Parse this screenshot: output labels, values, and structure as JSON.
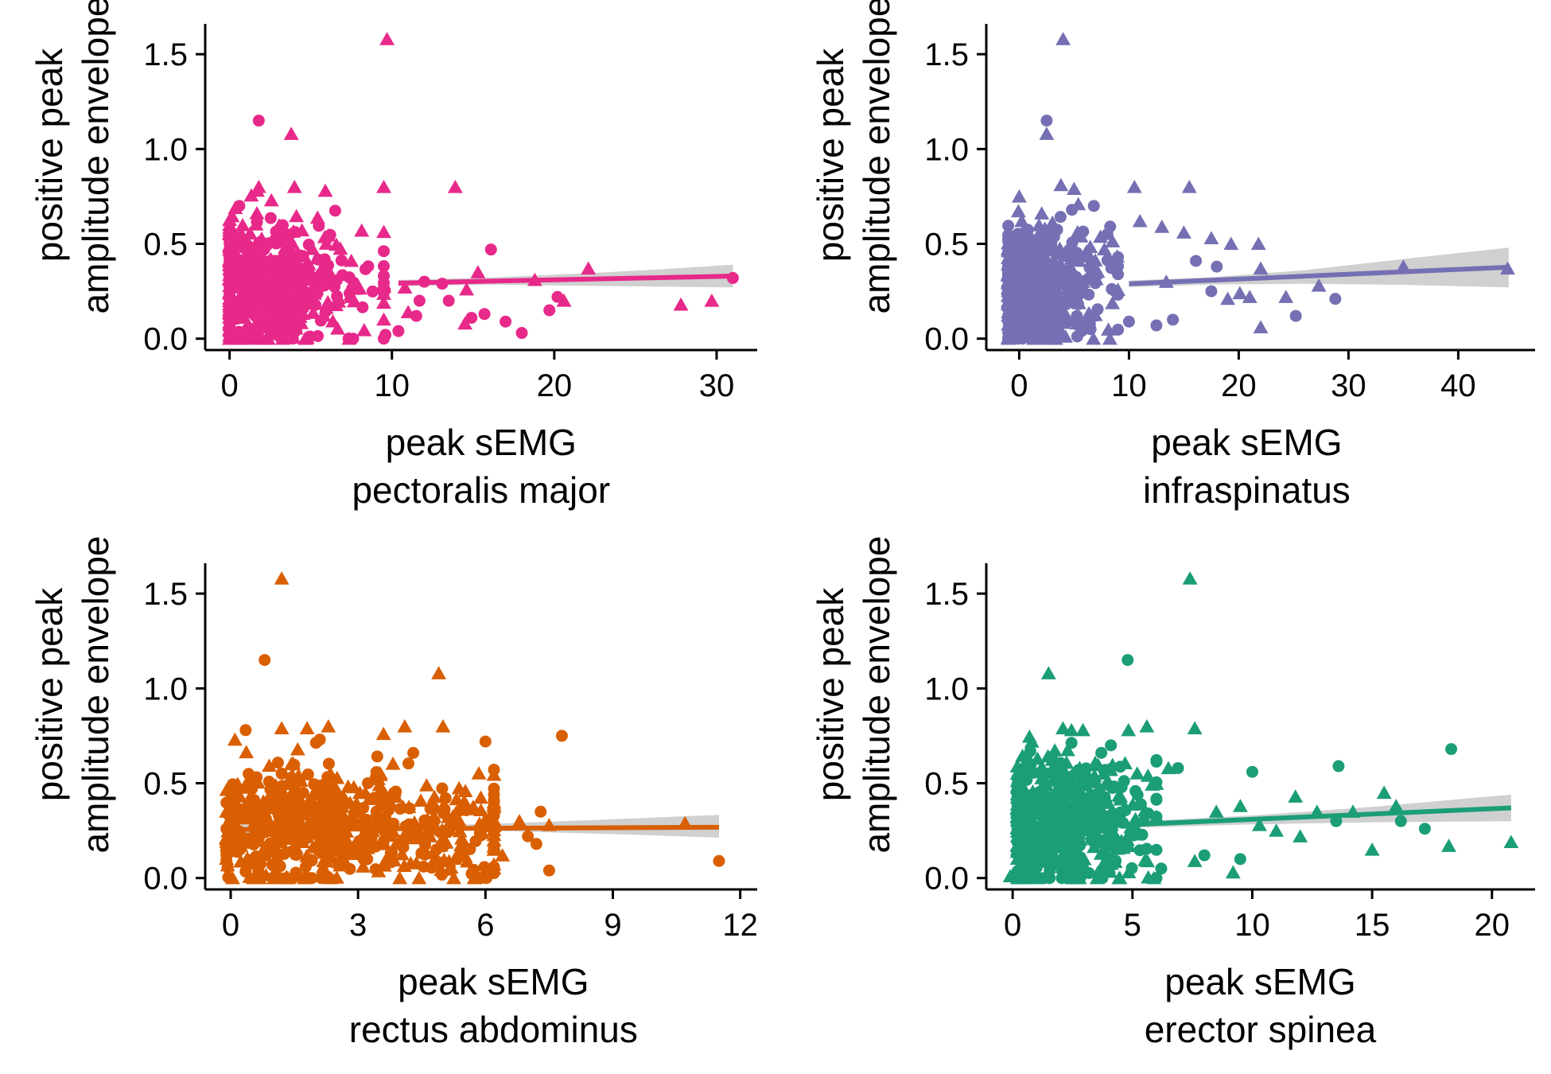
{
  "figure": {
    "panels": [
      {
        "id": "pectoralis",
        "color": "#E7298A",
        "xlabel": [
          "peak sEMG",
          "pectoralis major"
        ],
        "ylabel": [
          "positive peak",
          "amplitude envelope"
        ],
        "x_ticks": [
          0,
          10,
          20,
          30
        ],
        "y_ticks": [
          "0.0",
          "0.5",
          "1.0",
          "1.5"
        ]
      },
      {
        "id": "infraspinatus",
        "color": "#7570B3",
        "xlabel": [
          "peak sEMG",
          "infraspinatus"
        ],
        "ylabel": [
          "positive peak",
          "amplitude envelope"
        ],
        "x_ticks": [
          0,
          10,
          20,
          30,
          40
        ],
        "y_ticks": [
          "0.0",
          "0.5",
          "1.0",
          "1.5"
        ]
      },
      {
        "id": "rectus",
        "color": "#D95F02",
        "xlabel": [
          "peak sEMG",
          "rectus abdominus"
        ],
        "ylabel": [
          "positive peak",
          "amplitude envelope"
        ],
        "x_ticks": [
          0,
          3,
          6,
          9,
          12
        ],
        "y_ticks": [
          "0.0",
          "0.5",
          "1.0",
          "1.5"
        ]
      },
      {
        "id": "erector",
        "color": "#1B9E77",
        "xlabel": [
          "peak sEMG",
          "erector spinea"
        ],
        "ylabel": [
          "positive peak",
          "amplitude envelope"
        ],
        "x_ticks": [
          0,
          5,
          10,
          15,
          20
        ],
        "y_ticks": [
          "0.0",
          "0.5",
          "1.0",
          "1.5"
        ]
      }
    ]
  },
  "chart_data": [
    {
      "type": "scatter",
      "title": "",
      "xlabel": "peak sEMG pectoralis major",
      "ylabel": "positive peak amplitude envelope",
      "xlim": [
        -1.5,
        32.5
      ],
      "ylim": [
        -0.06,
        1.66
      ],
      "x_ticks": [
        0,
        10,
        20,
        30
      ],
      "y_ticks": [
        0,
        0.5,
        1.0,
        1.5
      ],
      "grid": false,
      "legend": "none",
      "color": "#E7298A",
      "cluster": {
        "x_range": [
          0,
          9.5
        ],
        "x_mode": 2.5,
        "y_center": 0.28,
        "y_spread": 0.17,
        "n": 560
      },
      "points": [
        {
          "x": 9.7,
          "y": 1.58,
          "shape": "triangle"
        },
        {
          "x": 1.8,
          "y": 1.15,
          "shape": "circle"
        },
        {
          "x": 3.8,
          "y": 1.08,
          "shape": "triangle"
        },
        {
          "x": 9.5,
          "y": 0.8,
          "shape": "triangle"
        },
        {
          "x": 13.9,
          "y": 0.8,
          "shape": "triangle"
        },
        {
          "x": 1.8,
          "y": 0.8,
          "shape": "triangle"
        },
        {
          "x": 4.0,
          "y": 0.8,
          "shape": "triangle"
        },
        {
          "x": 5.9,
          "y": 0.78,
          "shape": "triangle"
        },
        {
          "x": 0.6,
          "y": 0.7,
          "shape": "circle"
        },
        {
          "x": 16.1,
          "y": 0.47,
          "shape": "circle"
        },
        {
          "x": 15.3,
          "y": 0.35,
          "shape": "triangle"
        },
        {
          "x": 22.1,
          "y": 0.37,
          "shape": "triangle"
        },
        {
          "x": 18.8,
          "y": 0.31,
          "shape": "triangle"
        },
        {
          "x": 12.0,
          "y": 0.3,
          "shape": "circle"
        },
        {
          "x": 13.1,
          "y": 0.29,
          "shape": "circle"
        },
        {
          "x": 14.6,
          "y": 0.26,
          "shape": "triangle"
        },
        {
          "x": 10.8,
          "y": 0.27,
          "shape": "triangle"
        },
        {
          "x": 11.7,
          "y": 0.2,
          "shape": "circle"
        },
        {
          "x": 20.6,
          "y": 0.2,
          "shape": "triangle"
        },
        {
          "x": 20.2,
          "y": 0.22,
          "shape": "circle"
        },
        {
          "x": 27.8,
          "y": 0.18,
          "shape": "triangle"
        },
        {
          "x": 29.7,
          "y": 0.2,
          "shape": "triangle"
        },
        {
          "x": 19.7,
          "y": 0.15,
          "shape": "circle"
        },
        {
          "x": 14.9,
          "y": 0.11,
          "shape": "circle"
        },
        {
          "x": 14.5,
          "y": 0.08,
          "shape": "triangle"
        },
        {
          "x": 17.0,
          "y": 0.09,
          "shape": "circle"
        },
        {
          "x": 15.7,
          "y": 0.13,
          "shape": "circle"
        },
        {
          "x": 13.5,
          "y": 0.2,
          "shape": "circle"
        },
        {
          "x": 11.0,
          "y": 0.14,
          "shape": "triangle"
        },
        {
          "x": 10.4,
          "y": 0.04,
          "shape": "circle"
        },
        {
          "x": 11.5,
          "y": 0.12,
          "shape": "circle"
        },
        {
          "x": 9.6,
          "y": 0.02,
          "shape": "circle"
        },
        {
          "x": 18.0,
          "y": 0.03,
          "shape": "circle"
        },
        {
          "x": 31.0,
          "y": 0.32,
          "shape": "circle"
        }
      ],
      "regression": {
        "x0": 10.4,
        "y0": 0.293,
        "x1": 31.0,
        "y1": 0.33
      },
      "confidence_band": {
        "x": [
          10.4,
          16,
          22,
          27,
          31
        ],
        "lower": [
          0.277,
          0.285,
          0.279,
          0.274,
          0.27
        ],
        "upper": [
          0.309,
          0.322,
          0.345,
          0.368,
          0.39
        ]
      }
    },
    {
      "type": "scatter",
      "title": "",
      "xlabel": "peak sEMG infraspinatus",
      "ylabel": "positive peak amplitude envelope",
      "xlim": [
        -3.0,
        47.0
      ],
      "ylim": [
        -0.06,
        1.66
      ],
      "x_ticks": [
        0,
        10,
        20,
        30,
        40
      ],
      "y_ticks": [
        0,
        0.5,
        1.0,
        1.5
      ],
      "grid": false,
      "legend": "none",
      "color": "#7570B3",
      "cluster": {
        "x_range": [
          -1,
          9
        ],
        "x_mode": 2.0,
        "y_center": 0.28,
        "y_spread": 0.16,
        "n": 560
      },
      "points": [
        {
          "x": 4.0,
          "y": 1.58,
          "shape": "triangle"
        },
        {
          "x": 2.5,
          "y": 1.15,
          "shape": "circle"
        },
        {
          "x": 2.5,
          "y": 1.08,
          "shape": "triangle"
        },
        {
          "x": 3.8,
          "y": 0.81,
          "shape": "triangle"
        },
        {
          "x": 5.0,
          "y": 0.79,
          "shape": "triangle"
        },
        {
          "x": 10.5,
          "y": 0.8,
          "shape": "triangle"
        },
        {
          "x": 15.5,
          "y": 0.8,
          "shape": "triangle"
        },
        {
          "x": 0.0,
          "y": 0.75,
          "shape": "triangle"
        },
        {
          "x": 6.8,
          "y": 0.7,
          "shape": "circle"
        },
        {
          "x": 11.0,
          "y": 0.62,
          "shape": "triangle"
        },
        {
          "x": 13.0,
          "y": 0.59,
          "shape": "triangle"
        },
        {
          "x": 15.0,
          "y": 0.56,
          "shape": "triangle"
        },
        {
          "x": 17.5,
          "y": 0.53,
          "shape": "triangle"
        },
        {
          "x": 19.3,
          "y": 0.5,
          "shape": "triangle"
        },
        {
          "x": 21.8,
          "y": 0.5,
          "shape": "triangle"
        },
        {
          "x": 16.1,
          "y": 0.41,
          "shape": "circle"
        },
        {
          "x": 18.0,
          "y": 0.38,
          "shape": "circle"
        },
        {
          "x": 13.4,
          "y": 0.3,
          "shape": "triangle"
        },
        {
          "x": 22.0,
          "y": 0.37,
          "shape": "triangle"
        },
        {
          "x": 20.1,
          "y": 0.24,
          "shape": "triangle"
        },
        {
          "x": 21.0,
          "y": 0.22,
          "shape": "triangle"
        },
        {
          "x": 19.0,
          "y": 0.21,
          "shape": "triangle"
        },
        {
          "x": 17.5,
          "y": 0.25,
          "shape": "circle"
        },
        {
          "x": 24.3,
          "y": 0.22,
          "shape": "triangle"
        },
        {
          "x": 27.3,
          "y": 0.28,
          "shape": "triangle"
        },
        {
          "x": 28.8,
          "y": 0.21,
          "shape": "circle"
        },
        {
          "x": 25.2,
          "y": 0.12,
          "shape": "circle"
        },
        {
          "x": 22.0,
          "y": 0.06,
          "shape": "triangle"
        },
        {
          "x": 10.0,
          "y": 0.09,
          "shape": "circle"
        },
        {
          "x": 12.5,
          "y": 0.07,
          "shape": "circle"
        },
        {
          "x": 14.0,
          "y": 0.1,
          "shape": "circle"
        },
        {
          "x": 6.5,
          "y": 0.05,
          "shape": "circle"
        },
        {
          "x": 35.0,
          "y": 0.38,
          "shape": "triangle"
        },
        {
          "x": 44.5,
          "y": 0.37,
          "shape": "triangle"
        }
      ],
      "regression": {
        "x0": 10.0,
        "y0": 0.289,
        "x1": 44.6,
        "y1": 0.377
      },
      "confidence_band": {
        "x": [
          10,
          18,
          26,
          35,
          44.6
        ],
        "lower": [
          0.272,
          0.286,
          0.289,
          0.284,
          0.27
        ],
        "upper": [
          0.306,
          0.326,
          0.361,
          0.42,
          0.48
        ]
      }
    },
    {
      "type": "scatter",
      "title": "",
      "xlabel": "peak sEMG rectus abdominus",
      "ylabel": "positive peak amplitude envelope",
      "xlim": [
        -0.6,
        12.4
      ],
      "ylim": [
        -0.06,
        1.66
      ],
      "x_ticks": [
        0,
        3,
        6,
        9,
        12
      ],
      "y_ticks": [
        0,
        0.5,
        1.0,
        1.5
      ],
      "grid": false,
      "legend": "none",
      "color": "#D95F02",
      "cluster": {
        "x_range": [
          -0.1,
          6.2
        ],
        "x_mode": 3.2,
        "y_center": 0.27,
        "y_spread": 0.16,
        "n": 620
      },
      "points": [
        {
          "x": 1.2,
          "y": 1.58,
          "shape": "triangle"
        },
        {
          "x": 0.8,
          "y": 1.15,
          "shape": "circle"
        },
        {
          "x": 4.9,
          "y": 1.08,
          "shape": "triangle"
        },
        {
          "x": 1.2,
          "y": 0.79,
          "shape": "triangle"
        },
        {
          "x": 1.8,
          "y": 0.79,
          "shape": "triangle"
        },
        {
          "x": 2.3,
          "y": 0.8,
          "shape": "triangle"
        },
        {
          "x": 4.1,
          "y": 0.8,
          "shape": "triangle"
        },
        {
          "x": 5.0,
          "y": 0.8,
          "shape": "triangle"
        },
        {
          "x": 3.6,
          "y": 0.76,
          "shape": "triangle"
        },
        {
          "x": 0.1,
          "y": 0.73,
          "shape": "triangle"
        },
        {
          "x": 6.0,
          "y": 0.72,
          "shape": "circle"
        },
        {
          "x": 7.8,
          "y": 0.75,
          "shape": "circle"
        },
        {
          "x": 2.1,
          "y": 0.73,
          "shape": "circle"
        },
        {
          "x": 4.3,
          "y": 0.66,
          "shape": "circle"
        },
        {
          "x": 6.8,
          "y": 0.3,
          "shape": "triangle"
        },
        {
          "x": 7.3,
          "y": 0.35,
          "shape": "circle"
        },
        {
          "x": 7.5,
          "y": 0.28,
          "shape": "triangle"
        },
        {
          "x": 7.0,
          "y": 0.22,
          "shape": "circle"
        },
        {
          "x": 7.2,
          "y": 0.18,
          "shape": "circle"
        },
        {
          "x": 7.5,
          "y": 0.04,
          "shape": "circle"
        },
        {
          "x": 6.4,
          "y": 0.12,
          "shape": "triangle"
        },
        {
          "x": 6.2,
          "y": 0.05,
          "shape": "triangle"
        },
        {
          "x": 10.7,
          "y": 0.29,
          "shape": "triangle"
        },
        {
          "x": 11.5,
          "y": 0.09,
          "shape": "circle"
        },
        {
          "x": -0.1,
          "y": 0.26,
          "shape": "circle"
        }
      ],
      "regression": {
        "x0": -0.1,
        "y0": 0.256,
        "x1": 11.5,
        "y1": 0.268
      },
      "confidence_band": {
        "x": [
          -0.1,
          3,
          6,
          9,
          11.5
        ],
        "lower": [
          0.23,
          0.247,
          0.25,
          0.232,
          0.213
        ],
        "upper": [
          0.282,
          0.273,
          0.285,
          0.31,
          0.333
        ]
      }
    },
    {
      "type": "scatter",
      "title": "",
      "xlabel": "peak sEMG erector spinea",
      "ylabel": "positive peak amplitude envelope",
      "xlim": [
        -1.1,
        21.8
      ],
      "ylim": [
        -0.06,
        1.66
      ],
      "x_ticks": [
        0,
        5,
        10,
        15,
        20
      ],
      "y_ticks": [
        0,
        0.5,
        1.0,
        1.5
      ],
      "grid": false,
      "legend": "none",
      "color": "#1B9E77",
      "cluster": {
        "x_range": [
          0.2,
          6.0
        ],
        "x_mode": 2.2,
        "y_center": 0.28,
        "y_spread": 0.17,
        "n": 600
      },
      "points": [
        {
          "x": 7.4,
          "y": 1.58,
          "shape": "triangle"
        },
        {
          "x": 4.8,
          "y": 1.15,
          "shape": "circle"
        },
        {
          "x": 1.5,
          "y": 1.08,
          "shape": "triangle"
        },
        {
          "x": 2.1,
          "y": 0.79,
          "shape": "triangle"
        },
        {
          "x": 5.6,
          "y": 0.8,
          "shape": "triangle"
        },
        {
          "x": 7.6,
          "y": 0.79,
          "shape": "triangle"
        },
        {
          "x": 0.8,
          "y": 0.72,
          "shape": "triangle"
        },
        {
          "x": 4.1,
          "y": 0.7,
          "shape": "circle"
        },
        {
          "x": 3.7,
          "y": 0.66,
          "shape": "circle"
        },
        {
          "x": 18.3,
          "y": 0.68,
          "shape": "circle"
        },
        {
          "x": 13.6,
          "y": 0.59,
          "shape": "circle"
        },
        {
          "x": 10.0,
          "y": 0.56,
          "shape": "circle"
        },
        {
          "x": 6.5,
          "y": 0.58,
          "shape": "triangle"
        },
        {
          "x": 6.9,
          "y": 0.58,
          "shape": "circle"
        },
        {
          "x": 15.5,
          "y": 0.45,
          "shape": "triangle"
        },
        {
          "x": 11.8,
          "y": 0.43,
          "shape": "triangle"
        },
        {
          "x": 9.5,
          "y": 0.38,
          "shape": "triangle"
        },
        {
          "x": 8.5,
          "y": 0.35,
          "shape": "triangle"
        },
        {
          "x": 12.7,
          "y": 0.35,
          "shape": "triangle"
        },
        {
          "x": 14.2,
          "y": 0.35,
          "shape": "triangle"
        },
        {
          "x": 16.0,
          "y": 0.38,
          "shape": "triangle"
        },
        {
          "x": 17.2,
          "y": 0.26,
          "shape": "circle"
        },
        {
          "x": 10.3,
          "y": 0.28,
          "shape": "triangle"
        },
        {
          "x": 11.0,
          "y": 0.25,
          "shape": "triangle"
        },
        {
          "x": 12.0,
          "y": 0.22,
          "shape": "triangle"
        },
        {
          "x": 13.5,
          "y": 0.3,
          "shape": "circle"
        },
        {
          "x": 16.2,
          "y": 0.3,
          "shape": "circle"
        },
        {
          "x": 15.0,
          "y": 0.15,
          "shape": "triangle"
        },
        {
          "x": 18.2,
          "y": 0.17,
          "shape": "triangle"
        },
        {
          "x": 20.8,
          "y": 0.19,
          "shape": "triangle"
        },
        {
          "x": 9.2,
          "y": 0.03,
          "shape": "triangle"
        },
        {
          "x": 7.6,
          "y": 0.09,
          "shape": "triangle"
        },
        {
          "x": 9.5,
          "y": 0.1,
          "shape": "circle"
        },
        {
          "x": 8.0,
          "y": 0.12,
          "shape": "circle"
        },
        {
          "x": 6.2,
          "y": 0.05,
          "shape": "circle"
        },
        {
          "x": -0.1,
          "y": 0.01,
          "shape": "triangle"
        }
      ],
      "regression": {
        "x0": 0.0,
        "y0": 0.254,
        "x1": 20.8,
        "y1": 0.37
      },
      "confidence_band": {
        "x": [
          0,
          5,
          10,
          15,
          20.8
        ],
        "lower": [
          0.228,
          0.265,
          0.283,
          0.294,
          0.3
        ],
        "upper": [
          0.28,
          0.297,
          0.33,
          0.375,
          0.44
        ]
      }
    }
  ]
}
